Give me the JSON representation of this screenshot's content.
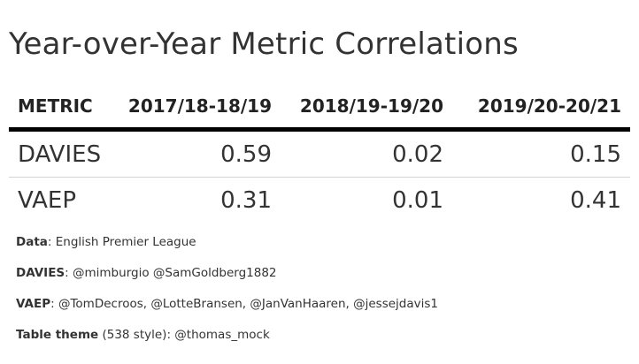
{
  "title": "Year-over-Year Metric Correlations",
  "table": {
    "columns": [
      "METRIC",
      "2017/18-18/19",
      "2018/19-19/20",
      "2019/20-20/21"
    ],
    "rows": [
      [
        "DAVIES",
        "0.59",
        "0.02",
        "0.15"
      ],
      [
        "VAEP",
        "0.31",
        "0.01",
        "0.41"
      ]
    ]
  },
  "notes": [
    {
      "label": "Data",
      "sep": ":",
      "paren": "",
      "text": " English Premier League"
    },
    {
      "label": "DAVIES",
      "sep": ":",
      "paren": "",
      "text": " @mimburgio @SamGoldberg1882"
    },
    {
      "label": "VAEP",
      "sep": ":",
      "paren": "",
      "text": " @TomDecroos, @LotteBransen, @JanVanHaaren, @jessejdavis1"
    },
    {
      "label": "Table theme",
      "sep": ":",
      "paren": " (538 style)",
      "text": " @thomas_mock"
    }
  ],
  "chart_data": {
    "type": "table",
    "title": "Year-over-Year Metric Correlations",
    "categories": [
      "2017/18-18/19",
      "2018/19-19/20",
      "2019/20-20/21"
    ],
    "series": [
      {
        "name": "DAVIES",
        "values": [
          0.59,
          0.02,
          0.15
        ]
      },
      {
        "name": "VAEP",
        "values": [
          0.31,
          0.01,
          0.41
        ]
      }
    ]
  }
}
